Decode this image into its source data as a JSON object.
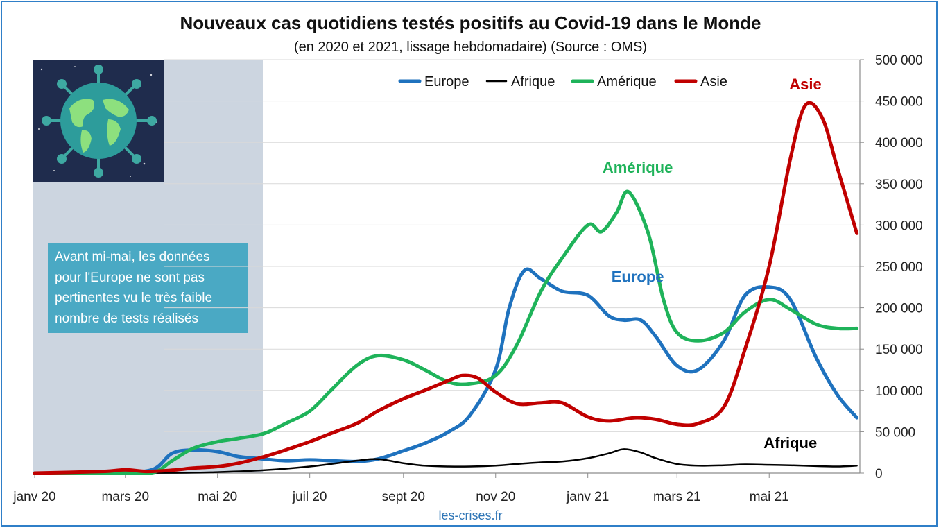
{
  "page": {
    "title": "Nouveaux cas quotidiens testés positifs au Covid-19 dans le Monde",
    "subtitle": "(en 2020 et 2021, lissage hebdomadaire) (Source : OMS)",
    "credit": "les-crises.fr",
    "note": "Avant mi-mai, les données\npour l'Europe ne sont pas\npertinentes vu le très faible\nnombre de tests réalisés",
    "shade_color": "#ccd5e0",
    "note_color": "#4aa9c4",
    "frame_color": "#2f7fc8",
    "globe_icon": "virus-globe-icon"
  },
  "chart_data": {
    "type": "line",
    "title": "Nouveaux cas quotidiens testés positifs au Covid-19 dans le Monde",
    "subtitle": "(en 2020 et 2021, lissage hebdomadaire) (Source : OMS)",
    "xlabel": "",
    "ylabel": "",
    "x_range": [
      "2020-01-01",
      "2021-06-30"
    ],
    "ylim": [
      0,
      500000
    ],
    "yticks": [
      0,
      50000,
      100000,
      150000,
      200000,
      250000,
      300000,
      350000,
      400000,
      450000,
      500000
    ],
    "ytick_labels": [
      "0",
      "50 000",
      "100 000",
      "150 000",
      "200 000",
      "250 000",
      "300 000",
      "350 000",
      "400 000",
      "450 000",
      "500 000"
    ],
    "xticks": [
      "2020-01-01",
      "2020-03-01",
      "2020-05-01",
      "2020-07-01",
      "2020-09-01",
      "2020-11-01",
      "2021-01-01",
      "2021-03-01",
      "2021-05-01"
    ],
    "xtick_labels": [
      "janv 20",
      "mars 20",
      "mai 20",
      "juil 20",
      "sept 20",
      "nov 20",
      "janv 21",
      "mars 21",
      "mai 21"
    ],
    "y_axis_side": "right",
    "grid": "horizontal",
    "legend_position": "top",
    "shaded_region": [
      "2020-01-01",
      "2020-05-25"
    ],
    "series": [
      {
        "name": "Europe",
        "color": "#1f72be",
        "label": "Europe",
        "x": [
          "2020-01-01",
          "2020-02-15",
          "2020-03-01",
          "2020-03-20",
          "2020-04-01",
          "2020-04-15",
          "2020-05-01",
          "2020-05-15",
          "2020-06-01",
          "2020-06-15",
          "2020-07-01",
          "2020-07-15",
          "2020-08-01",
          "2020-08-15",
          "2020-09-01",
          "2020-09-15",
          "2020-10-01",
          "2020-10-15",
          "2020-11-01",
          "2020-11-10",
          "2020-11-20",
          "2020-12-01",
          "2020-12-15",
          "2021-01-01",
          "2021-01-15",
          "2021-01-25",
          "2021-02-05",
          "2021-02-15",
          "2021-03-01",
          "2021-03-15",
          "2021-04-01",
          "2021-04-15",
          "2021-05-01",
          "2021-05-15",
          "2021-06-01",
          "2021-06-15",
          "2021-06-28"
        ],
        "values": [
          0,
          0,
          500,
          5000,
          24000,
          28000,
          26000,
          20000,
          17000,
          15000,
          16000,
          15000,
          14000,
          17000,
          27000,
          36000,
          50000,
          70000,
          125000,
          200000,
          245000,
          235000,
          220000,
          215000,
          190000,
          185000,
          185000,
          165000,
          130000,
          125000,
          160000,
          215000,
          225000,
          210000,
          140000,
          95000,
          67000
        ]
      },
      {
        "name": "Afrique",
        "color": "#000000",
        "label": "Afrique",
        "x": [
          "2020-01-01",
          "2020-04-01",
          "2020-05-01",
          "2020-06-01",
          "2020-07-01",
          "2020-08-01",
          "2020-08-15",
          "2020-09-01",
          "2020-09-15",
          "2020-10-01",
          "2020-10-15",
          "2020-11-01",
          "2020-11-15",
          "2020-12-01",
          "2020-12-15",
          "2021-01-01",
          "2021-01-15",
          "2021-01-25",
          "2021-02-05",
          "2021-02-15",
          "2021-03-01",
          "2021-03-15",
          "2021-04-01",
          "2021-04-15",
          "2021-05-01",
          "2021-05-15",
          "2021-06-01",
          "2021-06-15",
          "2021-06-28"
        ],
        "values": [
          0,
          300,
          1200,
          3500,
          8000,
          15000,
          17000,
          12000,
          9000,
          8000,
          8000,
          9000,
          11000,
          13000,
          14000,
          18000,
          24000,
          29000,
          25000,
          18000,
          11000,
          9000,
          9500,
          10500,
          10000,
          9500,
          8500,
          8000,
          9000
        ]
      },
      {
        "name": "Amérique",
        "color": "#1fb35a",
        "label": "Amérique",
        "x": [
          "2020-01-01",
          "2020-03-01",
          "2020-03-20",
          "2020-04-01",
          "2020-04-15",
          "2020-05-01",
          "2020-05-15",
          "2020-06-01",
          "2020-06-15",
          "2020-07-01",
          "2020-07-15",
          "2020-08-01",
          "2020-08-15",
          "2020-09-01",
          "2020-09-15",
          "2020-10-01",
          "2020-10-15",
          "2020-11-01",
          "2020-11-15",
          "2020-12-01",
          "2020-12-15",
          "2021-01-01",
          "2021-01-10",
          "2021-01-20",
          "2021-01-28",
          "2021-02-10",
          "2021-02-20",
          "2021-03-01",
          "2021-03-15",
          "2021-04-01",
          "2021-04-15",
          "2021-05-01",
          "2021-05-15",
          "2021-06-01",
          "2021-06-15",
          "2021-06-28"
        ],
        "values": [
          0,
          200,
          1000,
          15000,
          30000,
          38000,
          42000,
          48000,
          60000,
          75000,
          100000,
          130000,
          142000,
          137000,
          125000,
          110000,
          108000,
          118000,
          155000,
          220000,
          260000,
          300000,
          292000,
          315000,
          340000,
          290000,
          210000,
          170000,
          160000,
          170000,
          195000,
          210000,
          198000,
          180000,
          175000,
          175000
        ]
      },
      {
        "name": "Asie",
        "color": "#c00000",
        "label": "Asie",
        "x": [
          "2020-01-01",
          "2020-02-15",
          "2020-03-01",
          "2020-03-15",
          "2020-04-01",
          "2020-04-15",
          "2020-05-01",
          "2020-05-15",
          "2020-06-01",
          "2020-06-15",
          "2020-07-01",
          "2020-07-15",
          "2020-08-01",
          "2020-08-15",
          "2020-09-01",
          "2020-09-15",
          "2020-10-01",
          "2020-10-10",
          "2020-10-20",
          "2020-11-01",
          "2020-11-15",
          "2020-12-01",
          "2020-12-15",
          "2021-01-01",
          "2021-01-15",
          "2021-02-01",
          "2021-02-15",
          "2021-03-01",
          "2021-03-15",
          "2021-04-01",
          "2021-04-15",
          "2021-05-01",
          "2021-05-15",
          "2021-05-25",
          "2021-06-05",
          "2021-06-15",
          "2021-06-28"
        ],
        "values": [
          0,
          2000,
          4000,
          2000,
          3500,
          6000,
          8000,
          12000,
          20000,
          28000,
          38000,
          48000,
          60000,
          75000,
          90000,
          100000,
          112000,
          118000,
          115000,
          98000,
          84000,
          85000,
          85000,
          68000,
          63000,
          67000,
          65000,
          59000,
          60000,
          80000,
          150000,
          250000,
          380000,
          445000,
          430000,
          370000,
          290000
        ]
      }
    ],
    "annotations": [
      {
        "text": "Asie",
        "color": "#c00000",
        "x": "2021-05-25",
        "y": 470000
      },
      {
        "text": "Amérique",
        "color": "#1fb35a",
        "x": "2021-02-03",
        "y": 369000
      },
      {
        "text": "Europe",
        "color": "#1f72be",
        "x": "2021-02-03",
        "y": 237000
      },
      {
        "text": "Afrique",
        "color": "#000000",
        "x": "2021-05-15",
        "y": 36000
      }
    ]
  }
}
